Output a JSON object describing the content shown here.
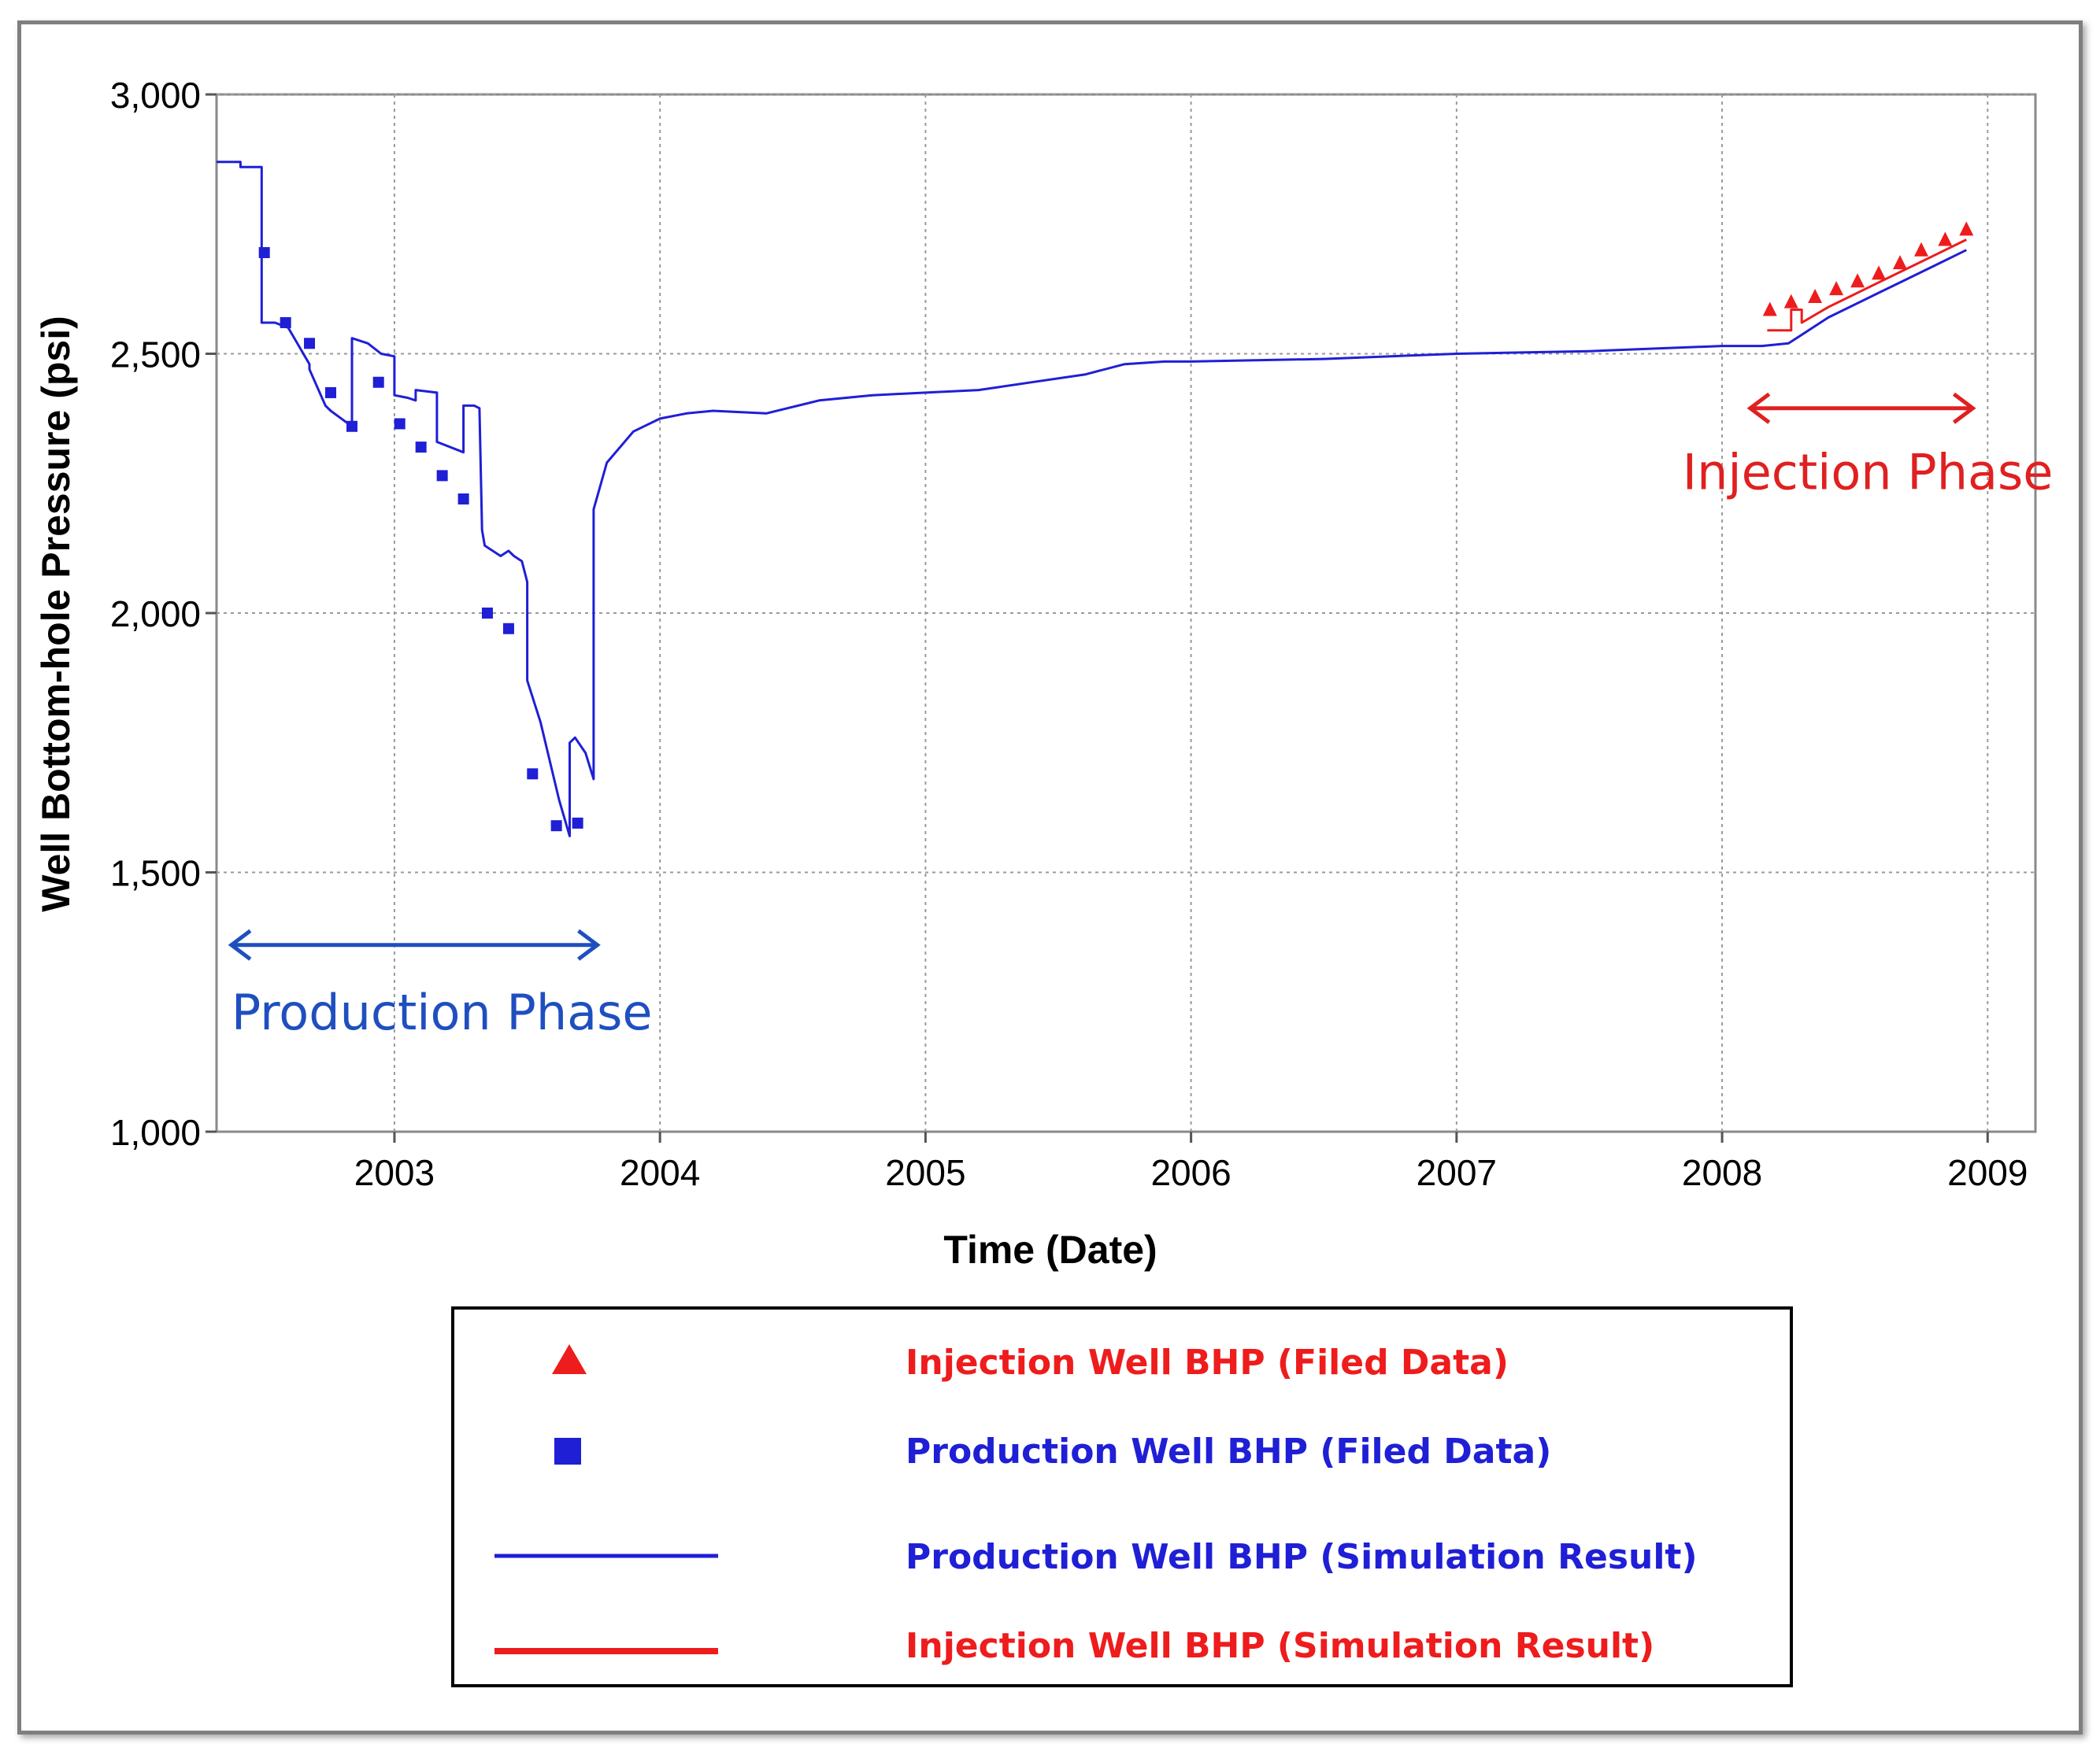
{
  "chart_data": {
    "type": "line",
    "title": "",
    "xlabel": "Time (Date)",
    "ylabel": "Well Bottom-hole Pressure (psi)",
    "xlim": [
      2002.33,
      2009.18
    ],
    "ylim": [
      1000,
      3000
    ],
    "x_ticks": [
      2003,
      2004,
      2005,
      2006,
      2007,
      2008,
      2009
    ],
    "x_tick_labels": [
      "2003",
      "2004",
      "2005",
      "2006",
      "2007",
      "2008",
      "2009"
    ],
    "y_ticks": [
      1000,
      1500,
      2000,
      2500,
      3000
    ],
    "y_tick_labels": [
      "1,000",
      "1,500",
      "2,000",
      "2,500",
      "3,000"
    ],
    "grid": true,
    "colors": {
      "production": "#1f1fd6",
      "injection": "#ee1c1c",
      "production_phase": "#1f4fbf",
      "injection_phase": "#e02020"
    },
    "series": [
      {
        "name": "Production Well BHP (Simulation Result)",
        "kind": "line",
        "color": "#1f1fd6",
        "x": [
          2002.33,
          2002.42,
          2002.42,
          2002.5,
          2002.5,
          2002.55,
          2002.6,
          2002.68,
          2002.68,
          2002.74,
          2002.76,
          2002.8,
          2002.84,
          2002.84,
          2002.9,
          2002.95,
          2003.0,
          2003.0,
          2003.05,
          2003.08,
          2003.08,
          2003.16,
          2003.16,
          2003.26,
          2003.26,
          2003.3,
          2003.32,
          2003.33,
          2003.34,
          2003.4,
          2003.43,
          2003.45,
          2003.48,
          2003.5,
          2003.5,
          2003.55,
          2003.62,
          2003.66,
          2003.66,
          2003.68,
          2003.72,
          2003.75,
          2003.75,
          2003.8,
          2003.9,
          2004.0,
          2004.1,
          2004.2,
          2004.4,
          2004.6,
          2004.8,
          2005.0,
          2005.2,
          2005.4,
          2005.6,
          2005.75,
          2005.9,
          2006.0,
          2006.5,
          2007.0,
          2007.5,
          2008.0,
          2008.15,
          2008.25,
          2008.4,
          2008.6,
          2008.8,
          2008.92
        ],
        "y": [
          2870,
          2870,
          2860,
          2860,
          2560,
          2560,
          2550,
          2480,
          2470,
          2400,
          2390,
          2375,
          2360,
          2530,
          2520,
          2500,
          2495,
          2420,
          2415,
          2410,
          2430,
          2425,
          2330,
          2310,
          2400,
          2400,
          2395,
          2160,
          2130,
          2110,
          2120,
          2110,
          2100,
          2060,
          1870,
          1790,
          1640,
          1570,
          1750,
          1760,
          1730,
          1680,
          2200,
          2290,
          2350,
          2375,
          2385,
          2390,
          2385,
          2410,
          2420,
          2425,
          2430,
          2445,
          2460,
          2480,
          2485,
          2485,
          2490,
          2500,
          2505,
          2515,
          2515,
          2520,
          2570,
          2620,
          2670,
          2700
        ]
      },
      {
        "name": "Injection Well BHP (Simulation Result)",
        "kind": "line",
        "color": "#ee1c1c",
        "x": [
          2008.17,
          2008.26,
          2008.26,
          2008.3,
          2008.3,
          2008.4,
          2008.6,
          2008.8,
          2008.92
        ],
        "y": [
          2545,
          2545,
          2585,
          2585,
          2560,
          2590,
          2640,
          2690,
          2720
        ]
      },
      {
        "name": "Production Well BHP (Filed Data)",
        "kind": "marker-square",
        "color": "#1f1fd6",
        "x": [
          2002.51,
          2002.59,
          2002.68,
          2002.76,
          2002.84,
          2002.94,
          2003.02,
          2003.1,
          2003.18,
          2003.26,
          2003.35,
          2003.43,
          2003.52,
          2003.61,
          2003.69
        ],
        "y": [
          2695,
          2560,
          2520,
          2425,
          2360,
          2445,
          2365,
          2320,
          2265,
          2220,
          2000,
          1970,
          1690,
          1590,
          1595
        ]
      },
      {
        "name": "Injection Well BHP (Filed Data)",
        "kind": "marker-triangle",
        "color": "#ee1c1c",
        "x": [
          2008.18,
          2008.26,
          2008.35,
          2008.43,
          2008.51,
          2008.59,
          2008.67,
          2008.75,
          2008.84,
          2008.92
        ],
        "y": [
          2585,
          2600,
          2610,
          2625,
          2640,
          2655,
          2675,
          2700,
          2720,
          2740
        ]
      }
    ],
    "annotations": [
      {
        "text": "Production Phase",
        "color": "#1f4fbf",
        "arrow_x": [
          2002.38,
          2003.77
        ],
        "arrow_y": 1360
      },
      {
        "text": "Injection Phase",
        "color": "#e02020",
        "arrow_x": [
          2008.1,
          2008.95
        ],
        "arrow_y": 2395
      }
    ],
    "legend": {
      "placement": "bottom",
      "entries": [
        {
          "label": "Injection Well BHP (Filed Data)",
          "symbol": "triangle",
          "color": "#ee1c1c"
        },
        {
          "label": "Production Well BHP (Filed Data)",
          "symbol": "square",
          "color": "#1f1fd6"
        },
        {
          "label": "Production Well BHP (Simulation Result)",
          "symbol": "line-thin",
          "color": "#1f1fd6"
        },
        {
          "label": "Injection Well BHP (Simulation Result)",
          "symbol": "line-thick",
          "color": "#ee1c1c"
        }
      ]
    }
  }
}
